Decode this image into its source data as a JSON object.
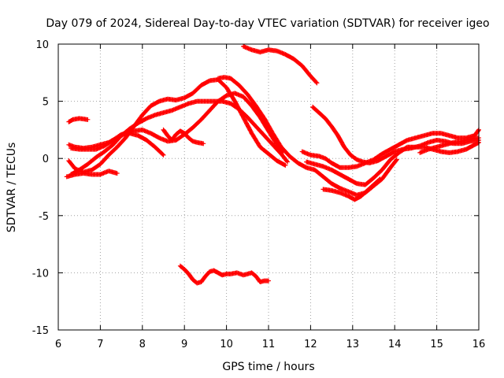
{
  "chart_data": {
    "type": "scatter",
    "title": "Day 079 of 2024, Sidereal Day-to-day VTEC variation (SDTVAR) for receiver igeo",
    "xlabel": "GPS time / hours",
    "ylabel": "SDTVAR / TECUs",
    "xlim": [
      6,
      16
    ],
    "ylim": [
      -15,
      10
    ],
    "xticks": [
      "6",
      "7",
      "8",
      "9",
      "10",
      "11",
      "12",
      "13",
      "14",
      "15",
      "16"
    ],
    "yticks": [
      "10",
      "5",
      "0",
      "-5",
      "-10",
      "-15"
    ],
    "grid": true,
    "marker": "+",
    "color": "#ff0000",
    "series": [
      {
        "name": "s1",
        "points": [
          [
            6.25,
            3.2
          ],
          [
            6.35,
            3.4
          ],
          [
            6.5,
            3.5
          ],
          [
            6.7,
            3.4
          ]
        ]
      },
      {
        "name": "s2",
        "points": [
          [
            6.25,
            1.2
          ],
          [
            6.4,
            1.0
          ],
          [
            6.6,
            0.9
          ],
          [
            6.8,
            1.0
          ],
          [
            7.0,
            1.2
          ],
          [
            7.2,
            1.4
          ],
          [
            7.4,
            1.8
          ],
          [
            7.6,
            2.2
          ],
          [
            7.8,
            2.4
          ],
          [
            8.0,
            2.5
          ],
          [
            8.2,
            2.2
          ],
          [
            8.4,
            1.8
          ],
          [
            8.6,
            1.5
          ],
          [
            8.8,
            1.6
          ],
          [
            9.0,
            2.1
          ],
          [
            9.2,
            2.7
          ],
          [
            9.4,
            3.4
          ],
          [
            9.6,
            4.2
          ],
          [
            9.8,
            5.0
          ],
          [
            10.0,
            5.5
          ],
          [
            10.2,
            5.7
          ],
          [
            10.4,
            5.4
          ],
          [
            10.6,
            4.6
          ],
          [
            10.8,
            3.6
          ],
          [
            11.0,
            2.4
          ],
          [
            11.2,
            1.2
          ],
          [
            11.35,
            0.6
          ]
        ]
      },
      {
        "name": "s3",
        "points": [
          [
            6.25,
            -0.2
          ],
          [
            6.4,
            -0.9
          ],
          [
            6.6,
            -1.2
          ],
          [
            6.8,
            -1.0
          ],
          [
            7.0,
            -0.5
          ],
          [
            7.2,
            0.3
          ],
          [
            7.4,
            1.0
          ],
          [
            7.6,
            1.8
          ],
          [
            7.8,
            2.8
          ],
          [
            8.0,
            3.8
          ],
          [
            8.2,
            4.6
          ],
          [
            8.4,
            5.0
          ],
          [
            8.6,
            5.2
          ],
          [
            8.8,
            5.1
          ],
          [
            9.0,
            5.3
          ],
          [
            9.2,
            5.7
          ],
          [
            9.4,
            6.4
          ],
          [
            9.6,
            6.8
          ],
          [
            9.8,
            6.9
          ],
          [
            10.0,
            6.2
          ],
          [
            10.2,
            5.0
          ],
          [
            10.4,
            3.6
          ],
          [
            10.6,
            2.2
          ],
          [
            10.8,
            1.0
          ],
          [
            11.0,
            0.4
          ],
          [
            11.2,
            -0.2
          ],
          [
            11.4,
            -0.6
          ]
        ]
      },
      {
        "name": "s4",
        "points": [
          [
            6.2,
            -1.6
          ],
          [
            6.4,
            -1.4
          ],
          [
            6.6,
            -1.3
          ],
          [
            6.8,
            -1.4
          ],
          [
            7.0,
            -1.4
          ],
          [
            7.2,
            -1.1
          ],
          [
            7.4,
            -1.3
          ]
        ]
      },
      {
        "name": "s5",
        "points": [
          [
            6.3,
            0.9
          ],
          [
            6.5,
            0.8
          ],
          [
            6.7,
            0.8
          ],
          [
            6.9,
            0.8
          ],
          [
            7.1,
            1.1
          ],
          [
            7.3,
            1.6
          ],
          [
            7.5,
            2.1
          ],
          [
            7.7,
            2.2
          ],
          [
            7.9,
            2.0
          ],
          [
            8.1,
            1.6
          ],
          [
            8.3,
            1.0
          ],
          [
            8.5,
            0.3
          ]
        ]
      },
      {
        "name": "s6",
        "points": [
          [
            6.3,
            -1.4
          ],
          [
            6.5,
            -1.0
          ],
          [
            6.7,
            -0.5
          ],
          [
            6.9,
            0.1
          ],
          [
            7.1,
            0.6
          ],
          [
            7.3,
            1.2
          ],
          [
            7.5,
            2.0
          ],
          [
            7.7,
            2.6
          ],
          [
            7.9,
            3.1
          ],
          [
            8.1,
            3.5
          ],
          [
            8.3,
            3.8
          ],
          [
            8.5,
            4.0
          ],
          [
            8.7,
            4.2
          ],
          [
            8.9,
            4.5
          ],
          [
            9.1,
            4.8
          ],
          [
            9.3,
            5.0
          ],
          [
            9.5,
            5.0
          ],
          [
            9.7,
            5.0
          ],
          [
            9.9,
            5.0
          ],
          [
            10.1,
            4.8
          ],
          [
            10.3,
            4.3
          ],
          [
            10.5,
            3.6
          ],
          [
            10.7,
            2.8
          ],
          [
            10.9,
            2.0
          ],
          [
            11.1,
            1.2
          ],
          [
            11.3,
            0.4
          ],
          [
            11.45,
            -0.3
          ]
        ]
      },
      {
        "name": "s7",
        "points": [
          [
            8.5,
            2.5
          ],
          [
            8.6,
            2.0
          ],
          [
            8.7,
            1.6
          ],
          [
            8.8,
            2.1
          ],
          [
            8.9,
            2.4
          ],
          [
            9.0,
            2.2
          ],
          [
            9.1,
            1.8
          ],
          [
            9.2,
            1.5
          ],
          [
            9.3,
            1.4
          ],
          [
            9.45,
            1.3
          ]
        ]
      },
      {
        "name": "s8",
        "points": [
          [
            10.4,
            9.8
          ],
          [
            10.6,
            9.5
          ],
          [
            10.8,
            9.3
          ],
          [
            11.0,
            9.5
          ],
          [
            11.2,
            9.4
          ],
          [
            11.4,
            9.1
          ],
          [
            11.6,
            8.7
          ],
          [
            11.8,
            8.1
          ],
          [
            12.0,
            7.2
          ],
          [
            12.15,
            6.6
          ]
        ]
      },
      {
        "name": "s9",
        "points": [
          [
            9.8,
            7.0
          ],
          [
            9.95,
            7.1
          ],
          [
            10.1,
            7.0
          ],
          [
            10.3,
            6.4
          ],
          [
            10.5,
            5.6
          ],
          [
            10.7,
            4.6
          ],
          [
            10.9,
            3.5
          ],
          [
            11.1,
            2.2
          ],
          [
            11.3,
            1.0
          ],
          [
            11.5,
            0.2
          ],
          [
            11.7,
            -0.4
          ],
          [
            11.9,
            -0.8
          ],
          [
            12.1,
            -1.0
          ],
          [
            12.3,
            -1.6
          ],
          [
            12.5,
            -2.2
          ],
          [
            12.7,
            -2.6
          ],
          [
            12.9,
            -2.9
          ],
          [
            13.1,
            -3.2
          ],
          [
            13.3,
            -3.0
          ],
          [
            13.5,
            -2.4
          ],
          [
            13.7,
            -1.8
          ],
          [
            13.9,
            -0.8
          ],
          [
            14.05,
            -0.1
          ]
        ]
      },
      {
        "name": "s10",
        "points": [
          [
            12.05,
            4.5
          ],
          [
            12.2,
            4.0
          ],
          [
            12.35,
            3.5
          ],
          [
            12.5,
            2.8
          ],
          [
            12.65,
            2.0
          ],
          [
            12.8,
            1.0
          ],
          [
            12.95,
            0.3
          ],
          [
            13.1,
            -0.1
          ],
          [
            13.25,
            -0.3
          ],
          [
            13.4,
            -0.4
          ],
          [
            13.6,
            -0.2
          ],
          [
            13.8,
            0.2
          ],
          [
            14.0,
            0.6
          ],
          [
            14.2,
            0.8
          ],
          [
            14.4,
            0.9
          ],
          [
            14.6,
            1.1
          ],
          [
            14.8,
            1.4
          ],
          [
            15.0,
            1.6
          ],
          [
            15.2,
            1.5
          ],
          [
            15.4,
            1.3
          ],
          [
            15.6,
            1.3
          ],
          [
            15.8,
            1.5
          ],
          [
            16.0,
            1.6
          ]
        ]
      },
      {
        "name": "s11",
        "points": [
          [
            11.8,
            0.6
          ],
          [
            12.0,
            0.3
          ],
          [
            12.2,
            0.2
          ],
          [
            12.35,
            0.0
          ],
          [
            12.5,
            -0.4
          ],
          [
            12.7,
            -0.8
          ],
          [
            12.9,
            -0.8
          ],
          [
            13.1,
            -0.7
          ],
          [
            13.3,
            -0.4
          ],
          [
            13.5,
            -0.1
          ],
          [
            13.7,
            0.4
          ],
          [
            13.9,
            0.8
          ],
          [
            14.1,
            1.2
          ],
          [
            14.3,
            1.6
          ],
          [
            14.5,
            1.8
          ],
          [
            14.7,
            2.0
          ],
          [
            14.9,
            2.2
          ],
          [
            15.1,
            2.2
          ],
          [
            15.3,
            2.0
          ],
          [
            15.5,
            1.8
          ],
          [
            15.7,
            1.8
          ],
          [
            15.9,
            2.0
          ],
          [
            16.0,
            2.5
          ]
        ]
      },
      {
        "name": "s12",
        "points": [
          [
            12.3,
            -2.7
          ],
          [
            12.5,
            -2.8
          ],
          [
            12.7,
            -3.0
          ],
          [
            12.9,
            -3.3
          ],
          [
            13.05,
            -3.6
          ],
          [
            13.2,
            -3.3
          ],
          [
            13.35,
            -2.8
          ],
          [
            13.5,
            -2.3
          ],
          [
            13.65,
            -1.8
          ]
        ]
      },
      {
        "name": "s13",
        "points": [
          [
            11.9,
            -0.3
          ],
          [
            12.1,
            -0.5
          ],
          [
            12.3,
            -0.7
          ],
          [
            12.5,
            -1.0
          ],
          [
            12.7,
            -1.4
          ],
          [
            12.9,
            -1.8
          ],
          [
            13.1,
            -2.2
          ],
          [
            13.3,
            -2.3
          ],
          [
            13.5,
            -1.7
          ],
          [
            13.7,
            -1.0
          ],
          [
            13.9,
            -0.1
          ],
          [
            14.1,
            0.5
          ],
          [
            14.3,
            1.0
          ],
          [
            14.5,
            1.0
          ],
          [
            14.7,
            1.0
          ],
          [
            14.9,
            0.8
          ],
          [
            15.1,
            0.6
          ],
          [
            15.3,
            0.5
          ],
          [
            15.5,
            0.6
          ],
          [
            15.7,
            0.8
          ],
          [
            15.9,
            1.2
          ],
          [
            16.0,
            1.4
          ]
        ]
      },
      {
        "name": "s14",
        "points": [
          [
            14.6,
            0.5
          ],
          [
            14.8,
            0.8
          ],
          [
            15.0,
            1.0
          ],
          [
            15.2,
            1.2
          ],
          [
            15.4,
            1.4
          ],
          [
            15.6,
            1.5
          ],
          [
            15.8,
            1.7
          ],
          [
            16.0,
            1.8
          ]
        ]
      },
      {
        "name": "s15",
        "points": [
          [
            8.9,
            -9.4
          ],
          [
            9.0,
            -9.7
          ],
          [
            9.1,
            -10.1
          ],
          [
            9.2,
            -10.6
          ],
          [
            9.3,
            -10.9
          ],
          [
            9.4,
            -10.8
          ],
          [
            9.5,
            -10.3
          ],
          [
            9.6,
            -9.9
          ],
          [
            9.7,
            -9.8
          ],
          [
            9.8,
            -10.0
          ],
          [
            9.9,
            -10.2
          ],
          [
            10.0,
            -10.1
          ],
          [
            10.1,
            -10.1
          ],
          [
            10.25,
            -10.0
          ],
          [
            10.4,
            -10.2
          ],
          [
            10.5,
            -10.1
          ],
          [
            10.6,
            -10.0
          ],
          [
            10.7,
            -10.3
          ],
          [
            10.8,
            -10.8
          ],
          [
            10.9,
            -10.7
          ],
          [
            11.0,
            -10.7
          ]
        ]
      }
    ]
  }
}
